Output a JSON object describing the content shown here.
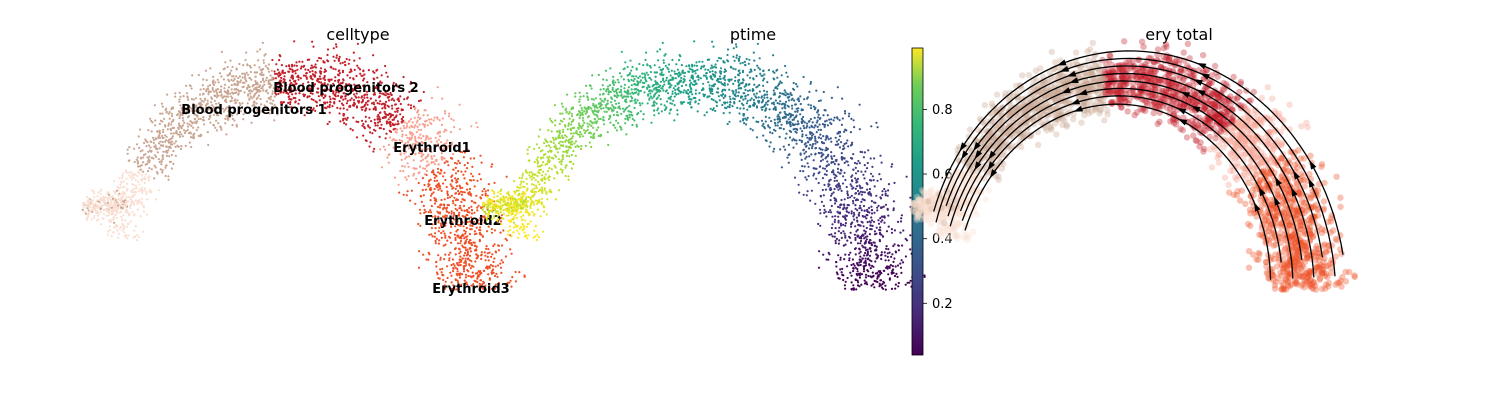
{
  "chart_data": [
    {
      "type": "scatter",
      "title": "celltype",
      "xlabel": "",
      "ylabel": "",
      "legend": "on data",
      "categories": [
        "Blood progenitors 1",
        "Blood progenitors 2",
        "Erythroid1",
        "Erythroid2",
        "Erythroid3"
      ],
      "colors": {
        "Blood progenitors 1": "#f9dfd2",
        "Blood progenitors 2": "#c9a592",
        "Erythroid1": "#c3202a",
        "Erythroid2": "#f7a08f",
        "Erythroid3": "#ef5026"
      }
    },
    {
      "type": "scatter",
      "title": "ptime",
      "xlabel": "",
      "ylabel": "",
      "colormap": "viridis",
      "colorbar": {
        "ticks": [
          "0.2",
          "0.4",
          "0.6",
          "0.8"
        ],
        "range": [
          0.04,
          0.99
        ]
      }
    },
    {
      "type": "scatter",
      "title": "ery total",
      "xlabel": "",
      "ylabel": "",
      "overlay": "streamlines",
      "colors": {
        "Blood progenitors 1": "#f9dfd2",
        "Blood progenitors 2": "#c9a592",
        "Erythroid1": "#c3202a",
        "Erythroid2": "#f7a08f",
        "Erythroid3": "#ef5026"
      }
    }
  ]
}
